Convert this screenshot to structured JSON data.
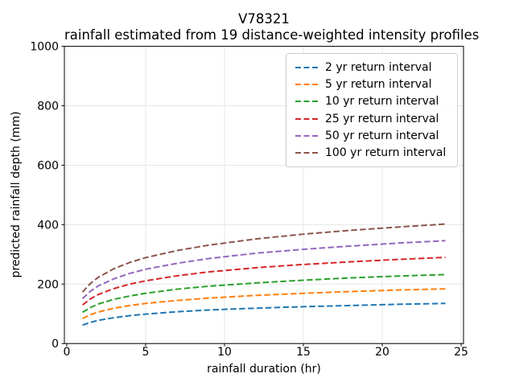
{
  "chart_data": {
    "type": "line",
    "title": "V78321",
    "subtitle": "rainfall estimated from 19 distance-weighted intensity profiles",
    "xlabel": "rainfall duration (hr)",
    "ylabel": "predicted rainfall depth (mm)",
    "x_ticks": [
      0,
      5,
      10,
      15,
      20,
      25
    ],
    "y_ticks": [
      0,
      200,
      400,
      600,
      800,
      1000
    ],
    "xlim": [
      -0.15,
      25.15
    ],
    "ylim": [
      0,
      1000
    ],
    "grid": true,
    "grid_color": "#e6e6e6",
    "spine_color": "#000000",
    "line_style": "dashed",
    "legend_position": "upper right",
    "x": [
      1,
      1.5,
      2,
      3,
      4,
      5,
      7,
      9,
      12,
      15,
      18,
      21,
      24
    ],
    "series": [
      {
        "label": "2 yr return interval",
        "color": "#1f77b4",
        "values": [
          62,
          71,
          78,
          87,
          94,
          99,
          107,
          113,
          119,
          124,
          128,
          132,
          135
        ]
      },
      {
        "label": "5 yr return interval",
        "color": "#ff7f0e",
        "values": [
          84,
          97,
          106,
          119,
          128,
          135,
          145,
          153,
          162,
          169,
          175,
          180,
          184
        ]
      },
      {
        "label": "10 yr return interval",
        "color": "#2ca02c",
        "values": [
          105,
          121,
          133,
          149,
          160,
          169,
          183,
          193,
          204,
          213,
          221,
          227,
          232
        ]
      },
      {
        "label": "25 yr return interval",
        "color": "#d62728",
        "values": [
          130,
          150,
          165,
          185,
          200,
          211,
          228,
          241,
          255,
          266,
          275,
          283,
          290
        ]
      },
      {
        "label": "50 yr return interval",
        "color": "#9467bd",
        "values": [
          151,
          176,
          194,
          218,
          236,
          250,
          270,
          286,
          304,
          317,
          328,
          338,
          346
        ]
      },
      {
        "label": "100 yr return interval",
        "color": "#8c564b",
        "values": [
          173,
          202,
          223,
          252,
          273,
          289,
          313,
          331,
          352,
          368,
          381,
          392,
          402
        ]
      }
    ]
  }
}
